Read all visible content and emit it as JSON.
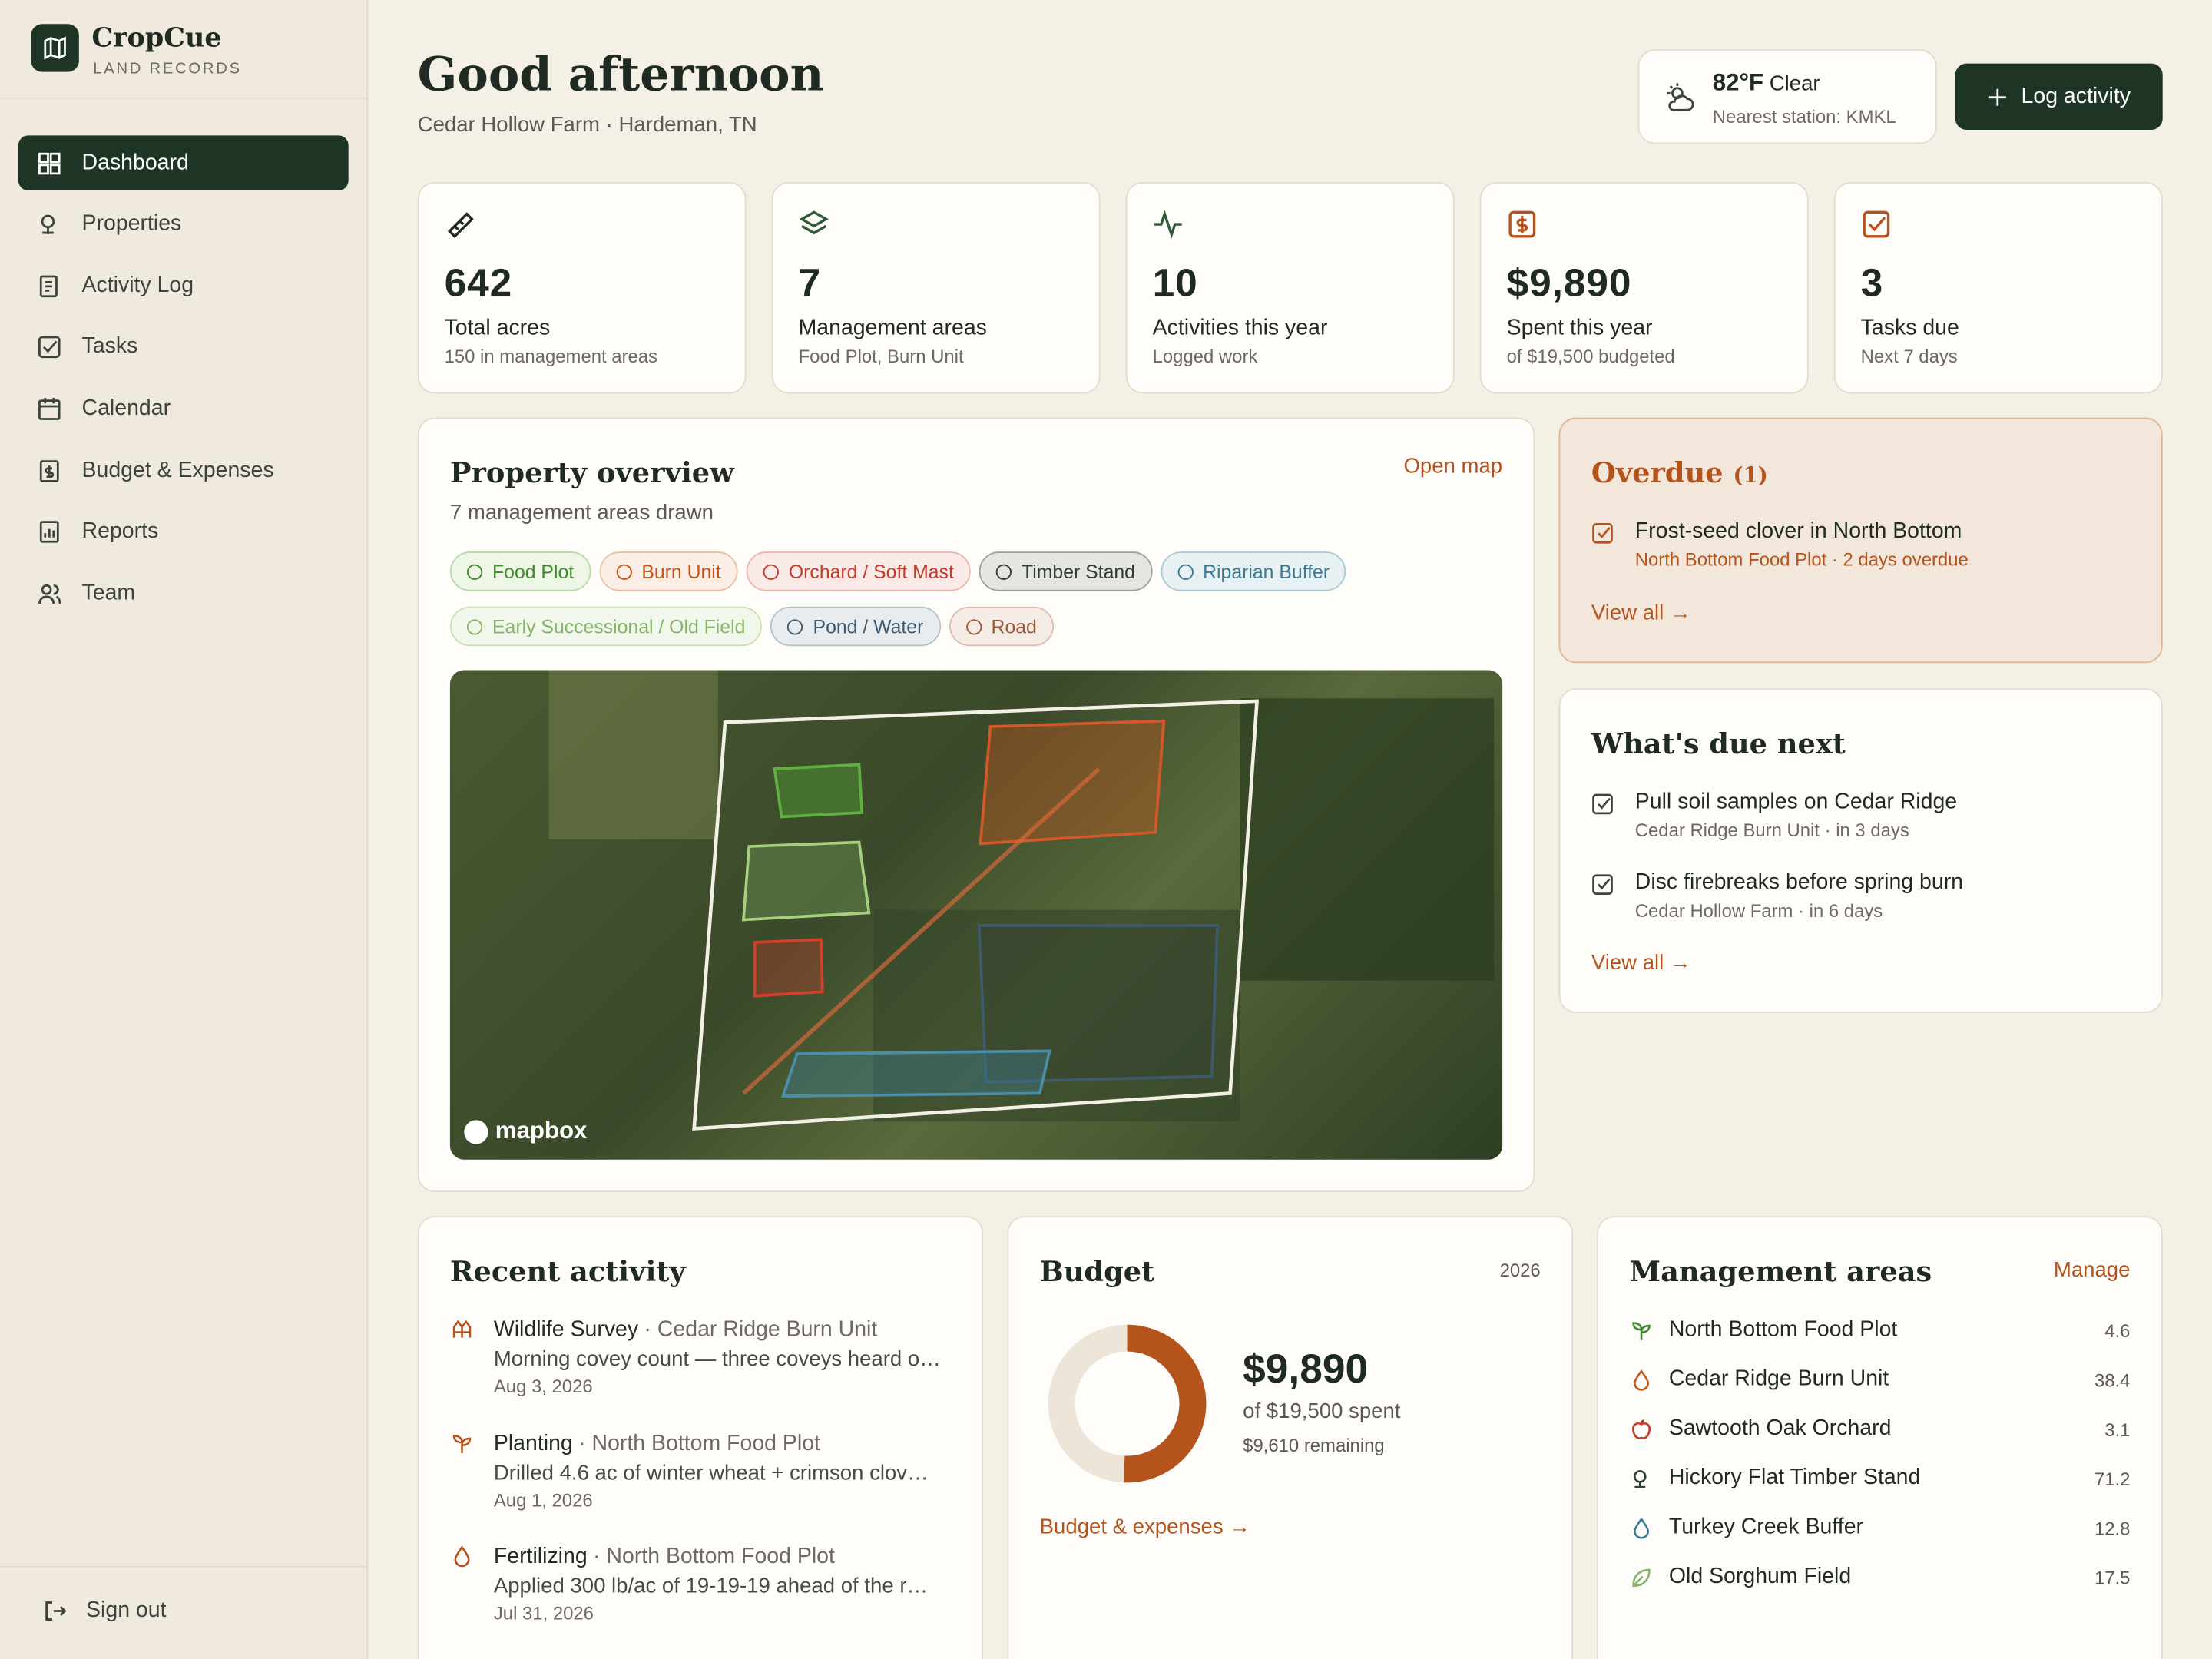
{
  "sidebar": {
    "brand": "CropCue",
    "brand_sub": "LAND RECORDS",
    "nav": [
      "Dashboard",
      "Properties",
      "Activity Log",
      "Tasks",
      "Calendar",
      "Budget & Expenses",
      "Reports",
      "Team"
    ],
    "sign_out": "Sign out"
  },
  "header": {
    "greeting": "Good afternoon",
    "location": "Cedar Hollow Farm · Hardeman, TN",
    "weather": {
      "temp": "82°F",
      "condition": "Clear",
      "station": "Nearest station: KMKL"
    },
    "action": "Log activity"
  },
  "stats": [
    {
      "value": "642",
      "label": "Total acres",
      "sub": "150 in management areas"
    },
    {
      "value": "7",
      "label": "Management areas",
      "sub": "Food Plot, Burn Unit"
    },
    {
      "value": "10",
      "label": "Activities this year",
      "sub": "Logged work"
    },
    {
      "value": "$9,890",
      "label": "Spent this year",
      "sub": "of $19,500 budgeted"
    },
    {
      "value": "3",
      "label": "Tasks due",
      "sub": "Next 7 days"
    }
  ],
  "overview": {
    "title": "Property overview",
    "subtitle": "7 management areas drawn",
    "link": "Open map",
    "legend": [
      "Food Plot",
      "Burn Unit",
      "Orchard / Soft Mast",
      "Timber Stand",
      "Riparian Buffer",
      "Early Successional / Old Field",
      "Pond / Water",
      "Road"
    ],
    "map_credit": "mapbox"
  },
  "overdue": {
    "title": "Overdue",
    "count": "(1)",
    "items": [
      {
        "title": "Frost-seed clover in North Bottom",
        "meta": "North Bottom Food Plot · 2 days overdue"
      }
    ],
    "link": "View all"
  },
  "due_next": {
    "title": "What's due next",
    "items": [
      {
        "title": "Pull soil samples on Cedar Ridge",
        "meta": "Cedar Ridge Burn Unit · in 3 days"
      },
      {
        "title": "Disc firebreaks before spring burn",
        "meta": "Cedar Hollow Farm · in 6 days"
      }
    ],
    "link": "View all"
  },
  "recent_activity": {
    "title": "Recent activity",
    "items": [
      {
        "type": "Wildlife Survey",
        "place": "· Cedar Ridge Burn Unit",
        "note": "Morning covey count — three coveys heard o…",
        "date": "Aug 3, 2026"
      },
      {
        "type": "Planting",
        "place": "· North Bottom Food Plot",
        "note": "Drilled 4.6 ac of winter wheat + crimson clov…",
        "date": "Aug 1, 2026"
      },
      {
        "type": "Fertilizing",
        "place": "· North Bottom Food Plot",
        "note": "Applied 300 lb/ac of 19-19-19 ahead of the r…",
        "date": "Jul 31, 2026"
      }
    ]
  },
  "budget": {
    "title": "Budget",
    "year": "2026",
    "spent": "$9,890",
    "total": "of $19,500 spent",
    "remaining": "$9,610 remaining",
    "link": "Budget & expenses"
  },
  "areas": {
    "title": "Management areas",
    "link": "Manage",
    "items": [
      {
        "name": "North Bottom Food Plot",
        "acres": "4.6"
      },
      {
        "name": "Cedar Ridge Burn Unit",
        "acres": "38.4"
      },
      {
        "name": "Sawtooth Oak Orchard",
        "acres": "3.1"
      },
      {
        "name": "Hickory Flat Timber Stand",
        "acres": "71.2"
      },
      {
        "name": "Turkey Creek Buffer",
        "acres": "12.8"
      },
      {
        "name": "Old Sorghum Field",
        "acres": "17.5"
      }
    ]
  }
}
